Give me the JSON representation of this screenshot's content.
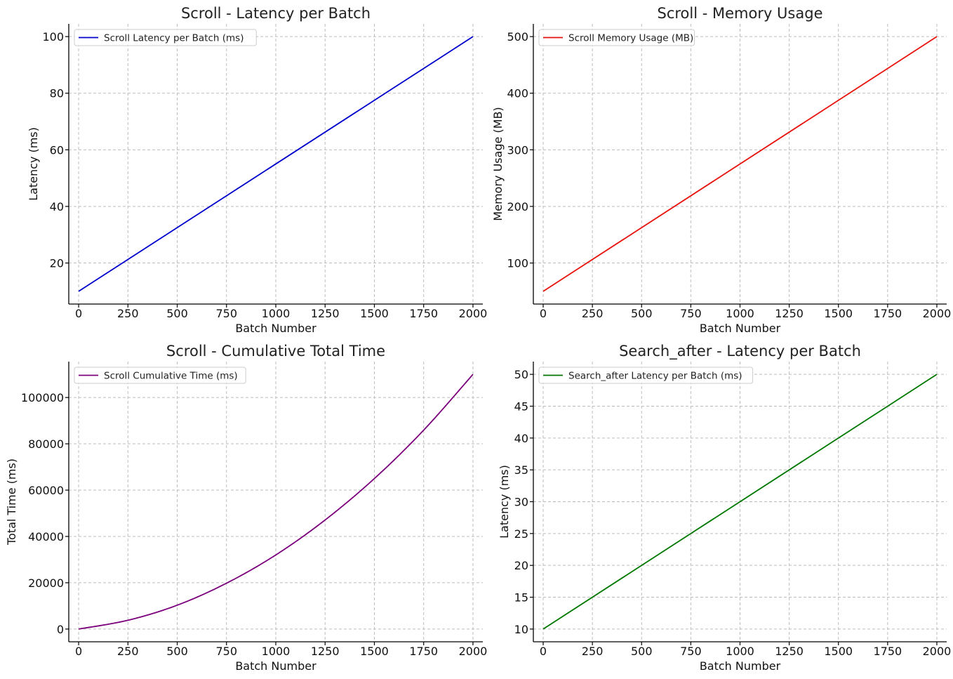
{
  "chart_data": [
    {
      "type": "line",
      "title": "Scroll - Latency per Batch",
      "xlabel": "Batch Number",
      "ylabel": "Latency (ms)",
      "xlim": [
        -50,
        2050
      ],
      "ylim": [
        5.5,
        104.5
      ],
      "xticks": [
        0,
        250,
        500,
        750,
        1000,
        1250,
        1500,
        1750,
        2000
      ],
      "yticks": [
        20,
        40,
        60,
        80,
        100
      ],
      "grid": true,
      "legend_position": "upper left",
      "series": [
        {
          "name": "Scroll Latency per Batch (ms)",
          "color": "#0000cc",
          "x": [
            0,
            2000
          ],
          "y": [
            10,
            100
          ]
        }
      ]
    },
    {
      "type": "line",
      "title": "Scroll - Memory Usage",
      "xlabel": "Batch Number",
      "ylabel": "Memory Usage (MB)",
      "xlim": [
        -50,
        2050
      ],
      "ylim": [
        27.5,
        522.5
      ],
      "xticks": [
        0,
        250,
        500,
        750,
        1000,
        1250,
        1500,
        1750,
        2000
      ],
      "yticks": [
        100,
        200,
        300,
        400,
        500
      ],
      "grid": true,
      "legend_position": "upper left",
      "series": [
        {
          "name": "Scroll Memory Usage (MB)",
          "color": "#e8120c",
          "x": [
            0,
            2000
          ],
          "y": [
            50,
            500
          ]
        }
      ]
    },
    {
      "type": "line",
      "title": "Scroll - Cumulative Total Time",
      "xlabel": "Batch Number",
      "ylabel": "Total Time (ms)",
      "xlim": [
        -50,
        2050
      ],
      "ylim": [
        -5500,
        115500
      ],
      "xticks": [
        0,
        250,
        500,
        750,
        1000,
        1250,
        1500,
        1750,
        2000
      ],
      "yticks": [
        0,
        20000,
        40000,
        60000,
        80000,
        100000
      ],
      "grid": true,
      "legend_position": "upper left",
      "series": [
        {
          "name": "Scroll Cumulative Time (ms)",
          "color": "#7b007b",
          "x": [
            0,
            250,
            500,
            750,
            1000,
            1250,
            1500,
            1750,
            2000
          ],
          "y": [
            0,
            3800,
            10300,
            19800,
            32000,
            47100,
            65000,
            85900,
            110000
          ]
        }
      ]
    },
    {
      "type": "line",
      "title": "Search_after - Latency per Batch",
      "xlabel": "Batch Number",
      "ylabel": "Latency (ms)",
      "xlim": [
        -50,
        2050
      ],
      "ylim": [
        8,
        52
      ],
      "xticks": [
        0,
        250,
        500,
        750,
        1000,
        1250,
        1500,
        1750,
        2000
      ],
      "yticks": [
        10,
        15,
        20,
        25,
        30,
        35,
        40,
        45,
        50
      ],
      "grid": true,
      "legend_position": "upper left",
      "series": [
        {
          "name": "Search_after Latency per Batch (ms)",
          "color": "#007800",
          "x": [
            0,
            2000
          ],
          "y": [
            10,
            50
          ]
        }
      ]
    }
  ]
}
